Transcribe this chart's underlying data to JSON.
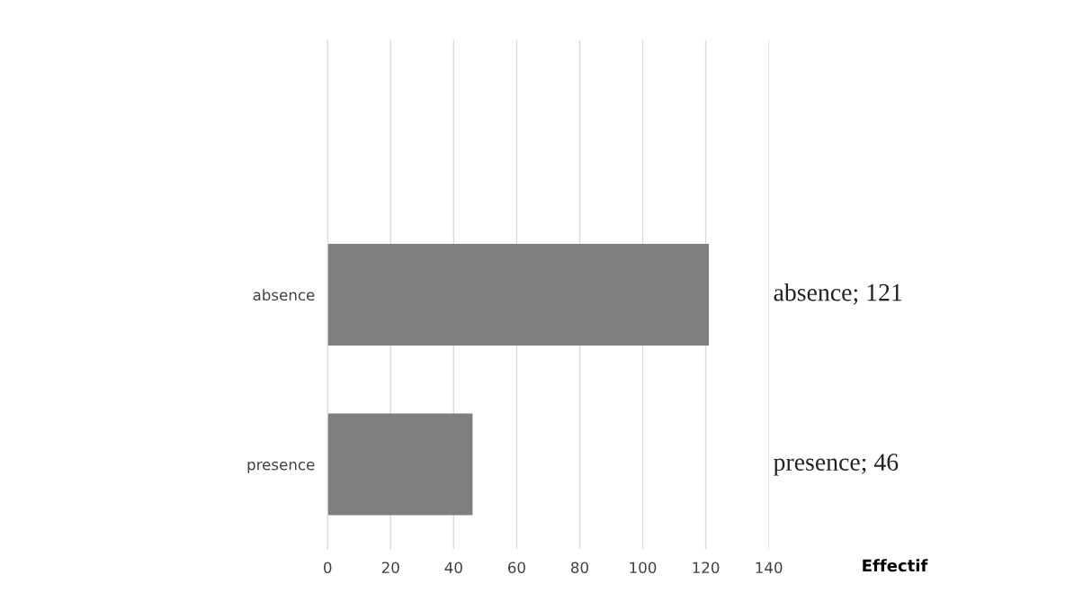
{
  "chart_data": {
    "type": "bar",
    "orientation": "horizontal",
    "xlabel": "Effectif",
    "categories": [
      null,
      "absence",
      "presence"
    ],
    "values": [
      null,
      121,
      46
    ],
    "value_labels": [
      null,
      "absence; 121",
      "presence; 46"
    ],
    "color": "#7f7f7f",
    "xlim": [
      0,
      140
    ],
    "xticks": [
      0,
      20,
      40,
      60,
      80,
      100,
      120,
      140
    ],
    "grid": "x",
    "legend": false
  }
}
